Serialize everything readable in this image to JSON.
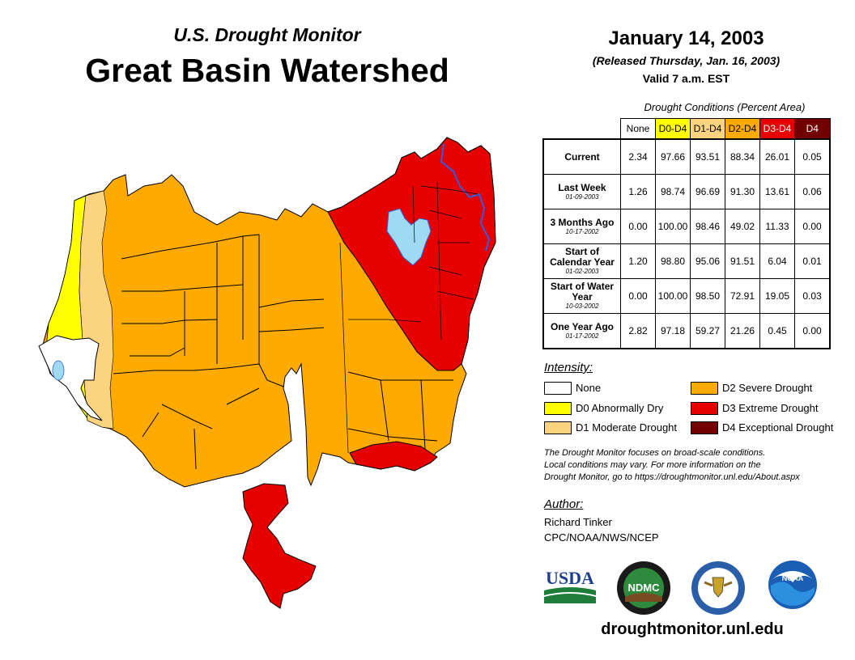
{
  "header": {
    "subtitle": "U.S. Drought Monitor",
    "title": "Great Basin Watershed",
    "date": "January 14, 2003",
    "released": "(Released Thursday, Jan. 16, 2003)",
    "valid": "Valid 7 a.m. EST"
  },
  "table": {
    "caption": "Drought Conditions (Percent Area)",
    "columns": [
      {
        "label": "None",
        "color": "#ffffff",
        "text_color": "#000000"
      },
      {
        "label": "D0-D4",
        "color": "#ffff00",
        "text_color": "#000000"
      },
      {
        "label": "D1-D4",
        "color": "#fcd37f",
        "text_color": "#000000"
      },
      {
        "label": "D2-D4",
        "color": "#ffaa00",
        "text_color": "#000000"
      },
      {
        "label": "D3-D4",
        "color": "#e60000",
        "text_color": "#ffffff"
      },
      {
        "label": "D4",
        "color": "#730000",
        "text_color": "#ffffff"
      }
    ],
    "rows": [
      {
        "label": "Current",
        "date": "",
        "values": [
          "2.34",
          "97.66",
          "93.51",
          "88.34",
          "26.01",
          "0.05"
        ]
      },
      {
        "label": "Last Week",
        "date": "01-09-2003",
        "values": [
          "1.26",
          "98.74",
          "96.69",
          "91.30",
          "13.61",
          "0.06"
        ]
      },
      {
        "label": "3 Months Ago",
        "date": "10-17-2002",
        "values": [
          "0.00",
          "100.00",
          "98.46",
          "49.02",
          "11.33",
          "0.00"
        ]
      },
      {
        "label": "Start of Calendar Year",
        "date": "01-02-2003",
        "values": [
          "1.20",
          "98.80",
          "95.06",
          "91.51",
          "6.04",
          "0.01"
        ]
      },
      {
        "label": "Start of Water Year",
        "date": "10-03-2002",
        "values": [
          "0.00",
          "100.00",
          "98.50",
          "72.91",
          "19.05",
          "0.03"
        ]
      },
      {
        "label": "One Year Ago",
        "date": "01-17-2002",
        "values": [
          "2.82",
          "97.18",
          "59.27",
          "21.26",
          "0.45",
          "0.00"
        ]
      }
    ]
  },
  "legend": {
    "title": "Intensity:",
    "items": [
      {
        "label": "None",
        "color": "#ffffff"
      },
      {
        "label": "D0 Abnormally Dry",
        "color": "#ffff00"
      },
      {
        "label": "D1 Moderate Drought",
        "color": "#fcd37f"
      },
      {
        "label": "D2 Severe Drought",
        "color": "#ffaa00"
      },
      {
        "label": "D3 Extreme Drought",
        "color": "#e60000"
      },
      {
        "label": "D4 Exceptional Drought",
        "color": "#730000"
      }
    ]
  },
  "note": {
    "line1": "The Drought Monitor focuses on broad-scale conditions.",
    "line2": "Local conditions may vary. For more information on the",
    "line3": "Drought Monitor, go to https://droughtmonitor.unl.edu/About.aspx"
  },
  "author": {
    "title": "Author:",
    "name": "Richard Tinker",
    "org": "CPC/NOAA/NWS/NCEP"
  },
  "logos": {
    "usda": "USDA",
    "ndmc": "NDMC",
    "noaa": "NOAA"
  },
  "footer": {
    "website": "droughtmonitor.unl.edu"
  },
  "map": {
    "colors": {
      "none": "#ffffff",
      "d0": "#ffff00",
      "d1": "#fcd37f",
      "d2": "#ffaa00",
      "d3": "#e60000",
      "water": "#9fd9f2",
      "river": "#3060e0"
    },
    "icons": [
      "lake-icon",
      "river-icon"
    ]
  }
}
